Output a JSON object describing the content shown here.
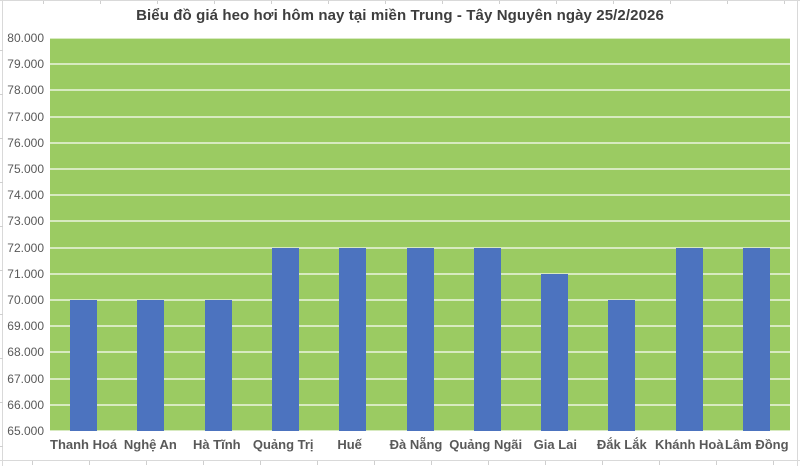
{
  "chart_data": {
    "type": "bar",
    "title": "Biểu đồ giá heo hơi hôm nay tại miền Trung - Tây Nguyên ngày 25/2/2026",
    "categories": [
      "Thanh Hoá",
      "Nghệ An",
      "Hà Tĩnh",
      "Quảng Trị",
      "Huế",
      "Đà Nẵng",
      "Quảng Ngãi",
      "Gia Lai",
      "Đắk Lắk",
      "Khánh Hoà",
      "Lâm Đồng"
    ],
    "values": [
      70000,
      70000,
      70000,
      72000,
      72000,
      72000,
      72000,
      71000,
      70000,
      72000,
      72000
    ],
    "xlabel": "",
    "ylabel": "",
    "ylim": [
      65000,
      80000
    ],
    "ytick_step": 1000,
    "ytick_labels": [
      "65.000",
      "66.000",
      "67.000",
      "68.000",
      "69.000",
      "70.000",
      "71.000",
      "72.000",
      "73.000",
      "74.000",
      "75.000",
      "76.000",
      "77.000",
      "78.000",
      "79.000",
      "80.000"
    ],
    "grid": true,
    "legend": false
  },
  "colors": {
    "bar": "#4C73BF",
    "plot_background": "#9BCB62",
    "gridline": "rgba(255,255,255,0.6)",
    "axis_text": "#595959",
    "title_text": "#3E3E3E",
    "sheet_line": "#D9D9D9"
  }
}
